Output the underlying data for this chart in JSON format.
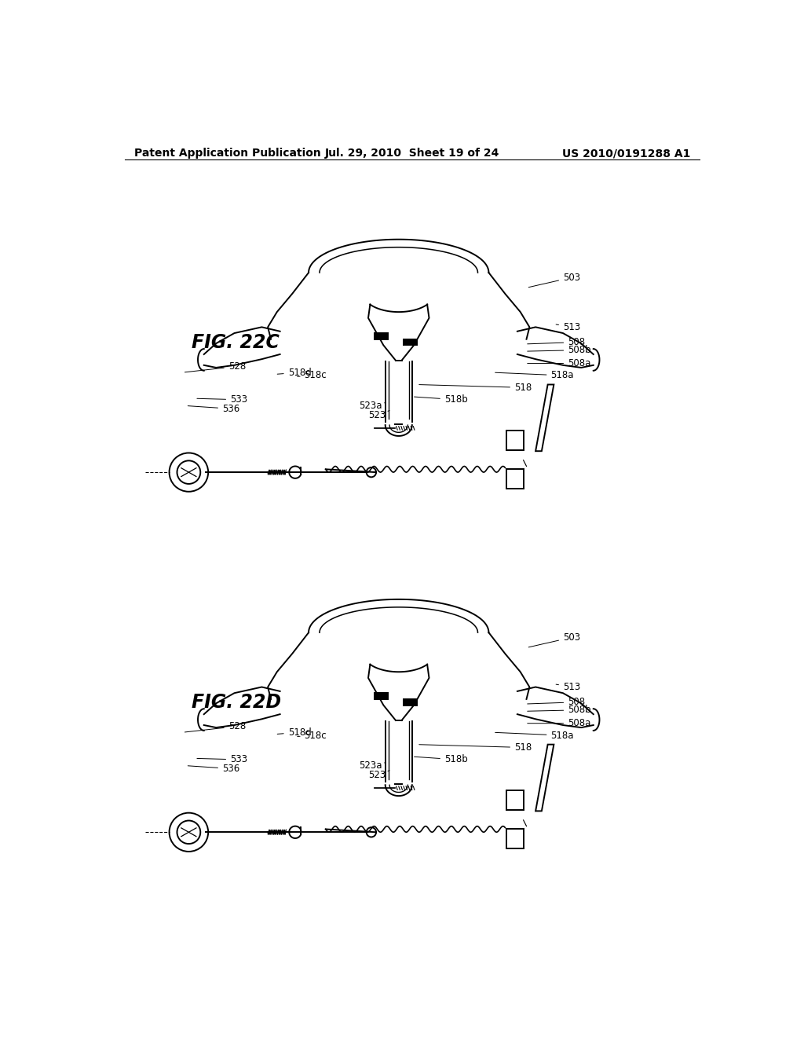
{
  "background_color": "#ffffff",
  "header_left": "Patent Application Publication",
  "header_center": "Jul. 29, 2010  Sheet 19 of 24",
  "header_right": "US 2010/0191288 A1",
  "header_fontsize": 10,
  "fig_label_fontsize": 17,
  "annotation_fontsize": 8.5,
  "line_color": "#000000",
  "line_width": 1.4,
  "fig22c_label": "FIG. 22C",
  "fig22d_label": "FIG. 22D"
}
